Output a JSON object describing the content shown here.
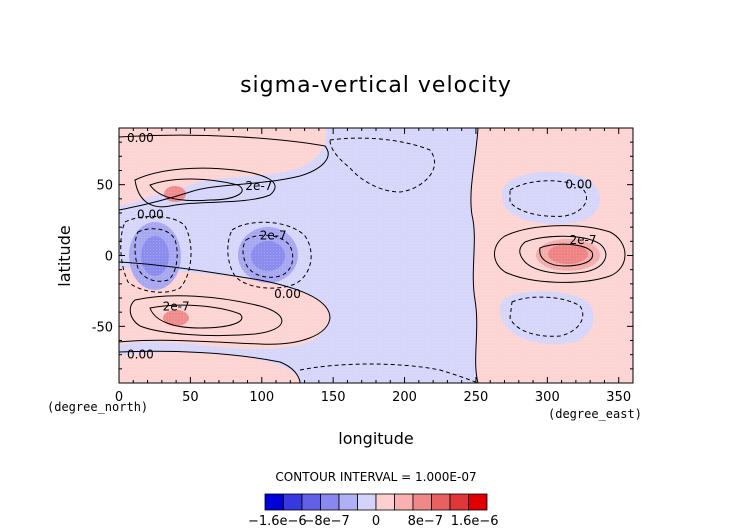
{
  "chart_data": {
    "type": "heatmap",
    "title": "sigma-vertical velocity",
    "xlabel": "longitude",
    "ylabel": "latitude",
    "x_unit": "(degree_east)",
    "y_unit": "(degree_north)",
    "xlim": [
      0,
      360
    ],
    "ylim": [
      -90,
      90
    ],
    "x_ticks": [
      "0",
      "50",
      "100",
      "150",
      "200",
      "250",
      "300",
      "350"
    ],
    "x_tick_values": [
      0,
      50,
      100,
      150,
      200,
      250,
      300,
      350
    ],
    "y_ticks": [
      "50",
      "0",
      "-50"
    ],
    "y_tick_values": [
      50,
      0,
      -50
    ],
    "contour_interval_text": "CONTOUR INTERVAL = 1.000E-07",
    "contour_labels": [
      {
        "text": "0.00",
        "lon": 15,
        "lat": 83
      },
      {
        "text": "2e-7",
        "lon": 98,
        "lat": 49
      },
      {
        "text": "0.00",
        "lon": 22,
        "lat": 29
      },
      {
        "text": "2e-7",
        "lon": 108,
        "lat": 14
      },
      {
        "text": "0.00",
        "lon": 118,
        "lat": -27
      },
      {
        "text": "2e-7",
        "lon": 40,
        "lat": -36
      },
      {
        "text": "0.00",
        "lon": 15,
        "lat": -70
      },
      {
        "text": "0.00",
        "lon": 322,
        "lat": 50
      },
      {
        "text": "2e-7",
        "lon": 325,
        "lat": 11
      }
    ],
    "features": [
      {
        "lon": 118,
        "lat": 68,
        "value": 3e-07
      },
      {
        "lon": 40,
        "lat": 42,
        "value": 8e-07
      },
      {
        "lon": 110,
        "lat": 42,
        "value": 4e-07
      },
      {
        "lon": 28,
        "lat": 2,
        "value": -9e-07
      },
      {
        "lon": 108,
        "lat": 0,
        "value": -8e-07
      },
      {
        "lon": 40,
        "lat": -44,
        "value": 1.1e-06
      },
      {
        "lon": 80,
        "lat": -50,
        "value": 3e-07
      },
      {
        "lon": 40,
        "lat": -75,
        "value": -2e-07
      },
      {
        "lon": 320,
        "lat": 40,
        "value": -4e-07
      },
      {
        "lon": 318,
        "lat": 0,
        "value": 1.1e-06
      },
      {
        "lon": 322,
        "lat": -45,
        "value": -4e-07
      },
      {
        "lon": 318,
        "lat": 70,
        "value": 2e-07
      },
      {
        "lon": 315,
        "lat": -75,
        "value": 2e-07
      }
    ],
    "colorbar": {
      "colors": [
        "#0000d8",
        "#3838e0",
        "#6060e8",
        "#8888f0",
        "#b0b0f4",
        "#d4d4fa",
        "#fcd0d0",
        "#f8b0b0",
        "#f08888",
        "#e86060",
        "#e03838",
        "#e00000"
      ],
      "tick_labels": [
        "−1.6e−6",
        "−8e−7",
        "0",
        "8e−7",
        "1.6e−6"
      ],
      "tick_values": [
        -1.6e-06,
        -8e-07,
        0,
        8e-07,
        1.6e-06
      ],
      "range": [
        -1.8e-06,
        1.8e-06
      ]
    }
  }
}
